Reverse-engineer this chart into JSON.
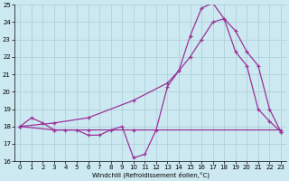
{
  "background_color": "#cce8f0",
  "grid_color": "#aaccd8",
  "line_color": "#993399",
  "xlabel": "Windchill (Refroidissement éolien,°C)",
  "xlim": [
    -0.5,
    23.5
  ],
  "ylim": [
    16,
    25
  ],
  "yticks": [
    16,
    17,
    18,
    19,
    20,
    21,
    22,
    23,
    24,
    25
  ],
  "xticks": [
    0,
    1,
    2,
    3,
    4,
    5,
    6,
    7,
    8,
    9,
    10,
    11,
    12,
    13,
    14,
    15,
    16,
    17,
    18,
    19,
    20,
    21,
    22,
    23
  ],
  "curve_jagged_x": [
    0,
    1,
    2,
    3,
    4,
    5,
    6,
    7,
    8,
    9,
    10,
    11,
    12,
    13,
    14,
    15,
    16,
    17,
    18,
    19,
    20,
    21,
    22,
    23
  ],
  "curve_jagged_y": [
    18.0,
    18.5,
    18.2,
    17.8,
    17.8,
    17.8,
    17.5,
    17.5,
    17.8,
    18.0,
    16.2,
    16.4,
    17.8,
    20.3,
    21.2,
    23.2,
    24.8,
    25.1,
    24.2,
    22.3,
    21.5,
    19.0,
    18.3,
    17.7
  ],
  "curve_upper_x": [
    0,
    3,
    6,
    10,
    13,
    14,
    15,
    16,
    17,
    18,
    19,
    20,
    21,
    22,
    23
  ],
  "curve_upper_y": [
    18.0,
    18.2,
    18.5,
    19.5,
    20.5,
    21.2,
    22.0,
    23.0,
    24.0,
    24.2,
    23.5,
    22.3,
    21.5,
    19.0,
    17.7
  ],
  "curve_flat_x": [
    0,
    3,
    6,
    10,
    23
  ],
  "curve_flat_y": [
    18.0,
    17.8,
    17.8,
    17.8,
    17.8
  ]
}
